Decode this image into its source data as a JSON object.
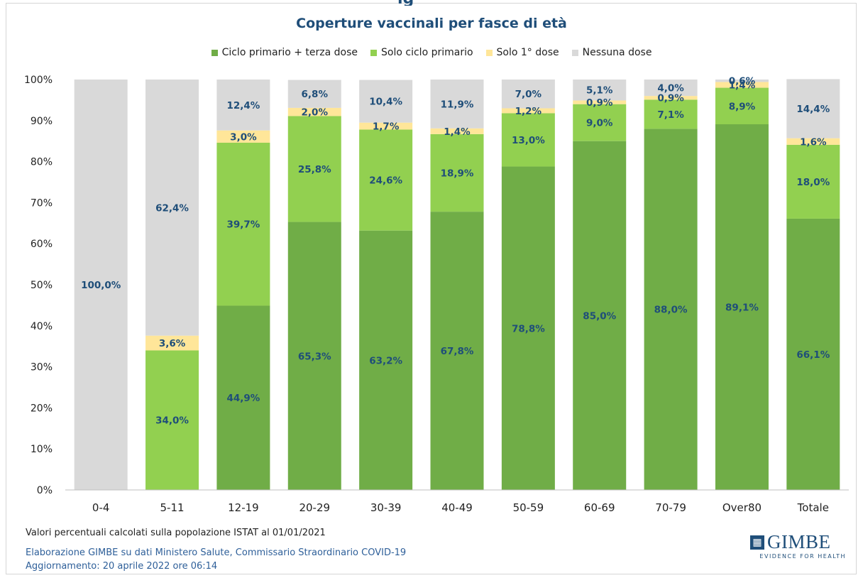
{
  "chart_data": {
    "type": "bar",
    "stacked": true,
    "top_text": "ig",
    "title": "Coperture vaccinali per fasce di età",
    "categories": [
      "0-4",
      "5-11",
      "12-19",
      "20-29",
      "30-39",
      "40-49",
      "50-59",
      "60-69",
      "70-79",
      "Over80",
      "Totale"
    ],
    "series": [
      {
        "name": "Ciclo primario + terza dose",
        "color": "#70ad47",
        "values": [
          0,
          0,
          44.9,
          65.3,
          63.2,
          67.8,
          78.8,
          85.0,
          88.0,
          89.1,
          66.1
        ]
      },
      {
        "name": "Solo ciclo primario",
        "color": "#92d050",
        "values": [
          0,
          34.0,
          39.7,
          25.8,
          24.6,
          18.9,
          13.0,
          9.0,
          7.1,
          8.9,
          18.0
        ]
      },
      {
        "name": "Solo 1° dose",
        "color": "#ffe699",
        "values": [
          0,
          3.6,
          3.0,
          2.0,
          1.7,
          1.4,
          1.2,
          0.9,
          0.9,
          1.4,
          1.6
        ]
      },
      {
        "name": "Nessuna dose",
        "color": "#d9d9d9",
        "values": [
          100.0,
          62.4,
          12.4,
          6.8,
          10.4,
          11.9,
          7.0,
          5.1,
          4.0,
          0.6,
          14.4
        ]
      }
    ],
    "labels": [
      [
        "",
        "",
        "44,9%",
        "65,3%",
        "63,2%",
        "67,8%",
        "78,8%",
        "85,0%",
        "88,0%",
        "89,1%",
        "66,1%"
      ],
      [
        "",
        "34,0%",
        "39,7%",
        "25,8%",
        "24,6%",
        "18,9%",
        "13,0%",
        "9,0%",
        "7,1%",
        "8,9%",
        "18,0%"
      ],
      [
        "",
        "3,6%",
        "3,0%",
        "2,0%",
        "1,7%",
        "1,4%",
        "1,2%",
        "0,9%",
        "0,9%",
        "1,4%",
        "1,6%"
      ],
      [
        "100,0%",
        "62,4%",
        "12,4%",
        "6,8%",
        "10,4%",
        "11,9%",
        "7,0%",
        "5,1%",
        "4,0%",
        "0,6%",
        "14,4%"
      ]
    ],
    "ylim": [
      0,
      100
    ],
    "yticks": [
      "0%",
      "10%",
      "20%",
      "30%",
      "40%",
      "50%",
      "60%",
      "70%",
      "80%",
      "90%",
      "100%"
    ],
    "label_color": "#1f4e79"
  },
  "footer": {
    "note": "Valori percentuali calcolati sulla popolazione ISTAT al 01/01/2021",
    "source_line1": "Elaborazione GIMBE su dati Ministero Salute, Commissario Straordinario COVID-19",
    "source_line2": "Aggiornamento: 20 aprile 2022 ore 06:14"
  },
  "logo": {
    "name": "GIMBE",
    "tagline": "EVIDENCE FOR HEALTH",
    "icon": "gimbe-logo-icon"
  }
}
